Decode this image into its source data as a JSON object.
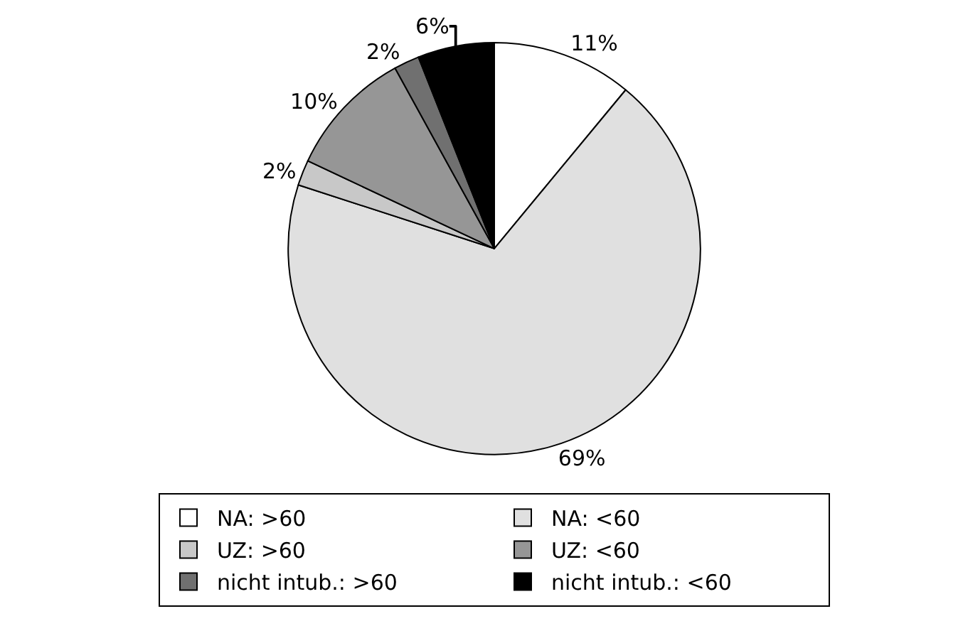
{
  "chart_data": {
    "type": "pie",
    "categories": [
      "NA: >60",
      "NA: <60",
      "UZ: >60",
      "UZ: <60",
      "nicht intub.: >60",
      "nicht intub.: <60"
    ],
    "values": [
      11,
      69,
      2,
      10,
      2,
      6
    ],
    "value_labels": [
      "11%",
      "69%",
      "2%",
      "10%",
      "2%",
      "6%"
    ],
    "colors": [
      "#ffffff",
      "#e0e0e0",
      "#c8c8c8",
      "#969696",
      "#707070",
      "#000000"
    ],
    "legend": "bottom"
  }
}
